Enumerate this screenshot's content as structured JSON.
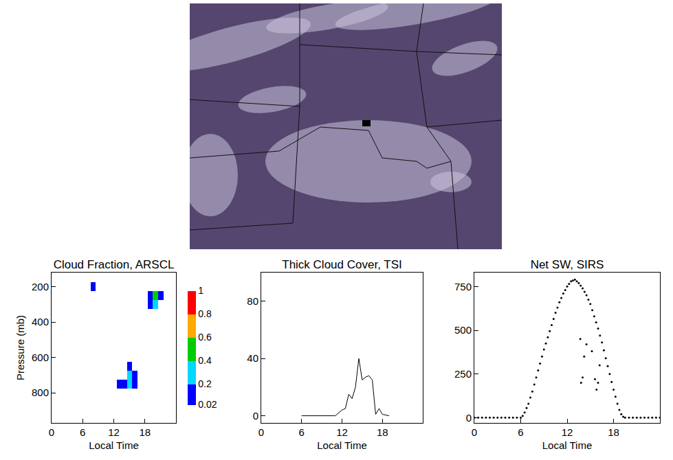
{
  "chart_data": [
    {
      "type": "heatmap",
      "title": "Cloud Fraction, ARSCL",
      "x_label": "Local Time",
      "y_label": "Pressure (mb)",
      "x": [
        0,
        1,
        2,
        3,
        4,
        5,
        6,
        7,
        8,
        9,
        10,
        11,
        12,
        13,
        14,
        15,
        16,
        17,
        18,
        19,
        20,
        21,
        22,
        23,
        24
      ],
      "y": [
        150,
        200,
        250,
        300,
        350,
        400,
        450,
        500,
        550,
        600,
        650,
        700,
        750,
        800,
        850,
        900,
        950
      ],
      "cells": [
        [
          null,
          null,
          null,
          null,
          null,
          null,
          null,
          null,
          null,
          null,
          null,
          null,
          null,
          null,
          null,
          null,
          null,
          null,
          null,
          null,
          null,
          null,
          null,
          null,
          null
        ],
        [
          null,
          null,
          null,
          null,
          null,
          null,
          null,
          null,
          0.1,
          null,
          null,
          null,
          null,
          null,
          null,
          null,
          null,
          null,
          null,
          null,
          null,
          null,
          null,
          null,
          null
        ],
        [
          null,
          null,
          null,
          null,
          null,
          null,
          null,
          null,
          null,
          null,
          null,
          null,
          null,
          null,
          null,
          null,
          null,
          null,
          null,
          0.15,
          0.5,
          0.15,
          null,
          null,
          null
        ],
        [
          null,
          null,
          null,
          null,
          null,
          null,
          null,
          null,
          null,
          null,
          null,
          null,
          null,
          null,
          null,
          null,
          null,
          null,
          null,
          0.1,
          0.25,
          null,
          null,
          null,
          null
        ],
        [
          null,
          null,
          null,
          null,
          null,
          null,
          null,
          null,
          null,
          null,
          null,
          null,
          null,
          null,
          null,
          null,
          null,
          null,
          null,
          null,
          null,
          null,
          null,
          null,
          null
        ],
        [
          null,
          null,
          null,
          null,
          null,
          null,
          null,
          null,
          null,
          null,
          null,
          null,
          null,
          null,
          null,
          null,
          null,
          null,
          null,
          null,
          null,
          null,
          null,
          null,
          null
        ],
        [
          null,
          null,
          null,
          null,
          null,
          null,
          null,
          null,
          null,
          null,
          null,
          null,
          null,
          null,
          null,
          null,
          null,
          null,
          null,
          null,
          null,
          null,
          null,
          null,
          null
        ],
        [
          null,
          null,
          null,
          null,
          null,
          null,
          null,
          null,
          null,
          null,
          null,
          null,
          null,
          null,
          null,
          null,
          null,
          null,
          null,
          null,
          null,
          null,
          null,
          null,
          null
        ],
        [
          null,
          null,
          null,
          null,
          null,
          null,
          null,
          null,
          null,
          null,
          null,
          null,
          null,
          null,
          null,
          null,
          null,
          null,
          null,
          null,
          null,
          null,
          null,
          null,
          null
        ],
        [
          null,
          null,
          null,
          null,
          null,
          null,
          null,
          null,
          null,
          null,
          null,
          null,
          null,
          null,
          null,
          null,
          null,
          null,
          null,
          null,
          null,
          null,
          null,
          null,
          null
        ],
        [
          null,
          null,
          null,
          null,
          null,
          null,
          null,
          null,
          null,
          null,
          null,
          null,
          null,
          null,
          null,
          0.1,
          null,
          null,
          null,
          null,
          null,
          null,
          null,
          null,
          null
        ],
        [
          null,
          null,
          null,
          null,
          null,
          null,
          null,
          null,
          null,
          null,
          null,
          null,
          null,
          null,
          null,
          0.25,
          0.15,
          null,
          null,
          null,
          null,
          null,
          null,
          null,
          null
        ],
        [
          null,
          null,
          null,
          null,
          null,
          null,
          null,
          null,
          null,
          null,
          null,
          null,
          null,
          0.05,
          0.15,
          0.35,
          0.15,
          null,
          null,
          null,
          null,
          null,
          null,
          null,
          null
        ],
        [
          null,
          null,
          null,
          null,
          null,
          null,
          null,
          null,
          null,
          null,
          null,
          null,
          null,
          null,
          null,
          null,
          null,
          null,
          null,
          null,
          null,
          null,
          null,
          null,
          null
        ],
        [
          null,
          null,
          null,
          null,
          null,
          null,
          null,
          null,
          null,
          null,
          null,
          null,
          null,
          null,
          null,
          null,
          null,
          null,
          null,
          null,
          null,
          null,
          null,
          null,
          null
        ],
        [
          null,
          null,
          null,
          null,
          null,
          null,
          null,
          null,
          null,
          null,
          null,
          null,
          null,
          null,
          null,
          null,
          null,
          null,
          null,
          null,
          null,
          null,
          null,
          null,
          null
        ],
        [
          null,
          null,
          null,
          null,
          null,
          null,
          null,
          null,
          null,
          null,
          null,
          null,
          null,
          null,
          null,
          null,
          null,
          null,
          null,
          null,
          null,
          null,
          null,
          null,
          null
        ]
      ],
      "xlim": [
        0,
        24
      ],
      "xticks": [
        0,
        6,
        12,
        18
      ],
      "ylim": [
        970,
        120
      ],
      "yticks": [
        200,
        400,
        600,
        800
      ],
      "colorbar": {
        "range": [
          0.02,
          1
        ],
        "ticks": [
          0.02,
          0.2,
          0.4,
          0.6,
          0.8,
          1
        ],
        "colors": [
          "#0000ff",
          "#00d8ff",
          "#00cc00",
          "#ffaa00",
          "#ff0000"
        ]
      }
    },
    {
      "type": "line",
      "title": "Thick Cloud Cover, TSI",
      "x_label": "Local Time",
      "x": [
        6,
        8,
        10,
        11,
        12,
        12.5,
        13,
        13.5,
        14,
        14.5,
        15,
        15.5,
        16,
        16.5,
        17,
        17.5,
        18,
        19
      ],
      "values": [
        0,
        0,
        0,
        0,
        4,
        5,
        15,
        12,
        20,
        40,
        25,
        27,
        28,
        25,
        1,
        5,
        1,
        0
      ],
      "color": "#000000",
      "xlim": [
        0,
        24
      ],
      "xticks": [
        0,
        6,
        12,
        18
      ],
      "ylim": [
        -5,
        100
      ],
      "yticks": [
        0,
        40,
        80
      ]
    },
    {
      "type": "scatter",
      "title": "Net SW, SIRS",
      "x_label": "Local Time",
      "marker": "dot",
      "x": [
        0,
        0.5,
        1,
        1.5,
        2,
        2.5,
        3,
        3.5,
        4,
        4.5,
        5,
        5.5,
        6,
        6.25,
        6.5,
        6.75,
        7,
        7.25,
        7.5,
        7.75,
        8,
        8.25,
        8.5,
        8.75,
        9,
        9.25,
        9.5,
        9.75,
        10,
        10.25,
        10.5,
        10.75,
        11,
        11.25,
        11.5,
        11.75,
        12,
        12.25,
        12.5,
        12.75,
        13,
        13.25,
        13.5,
        13.75,
        14,
        14.25,
        14.5,
        14.75,
        15,
        15.25,
        15.5,
        15.75,
        16,
        16.25,
        16.5,
        16.75,
        17,
        17.25,
        17.5,
        17.75,
        18,
        18.25,
        18.5,
        18.75,
        19,
        19.25,
        19.5,
        20,
        20.5,
        21,
        21.5,
        22,
        22.5,
        23,
        23.5,
        24,
        13.7,
        13.8,
        14,
        14.2,
        14.5,
        15.2,
        15.6,
        15.8,
        16,
        16.2
      ],
      "values": [
        0,
        0,
        0,
        0,
        0,
        0,
        0,
        0,
        0,
        0,
        0,
        0,
        0,
        10,
        30,
        55,
        80,
        115,
        150,
        190,
        230,
        270,
        310,
        350,
        390,
        425,
        460,
        495,
        530,
        565,
        600,
        630,
        660,
        685,
        710,
        730,
        750,
        765,
        780,
        785,
        790,
        780,
        770,
        755,
        740,
        720,
        700,
        675,
        650,
        615,
        580,
        545,
        510,
        470,
        430,
        385,
        340,
        295,
        250,
        205,
        160,
        120,
        80,
        45,
        20,
        5,
        0,
        0,
        0,
        0,
        0,
        0,
        0,
        0,
        0,
        0,
        450,
        200,
        230,
        350,
        420,
        380,
        220,
        160,
        200,
        300
      ],
      "color": "#000000",
      "xlim": [
        0,
        24
      ],
      "xticks": [
        0,
        6,
        12,
        18
      ],
      "ylim": [
        -30,
        830
      ],
      "yticks": [
        0,
        250,
        500,
        750
      ]
    }
  ]
}
